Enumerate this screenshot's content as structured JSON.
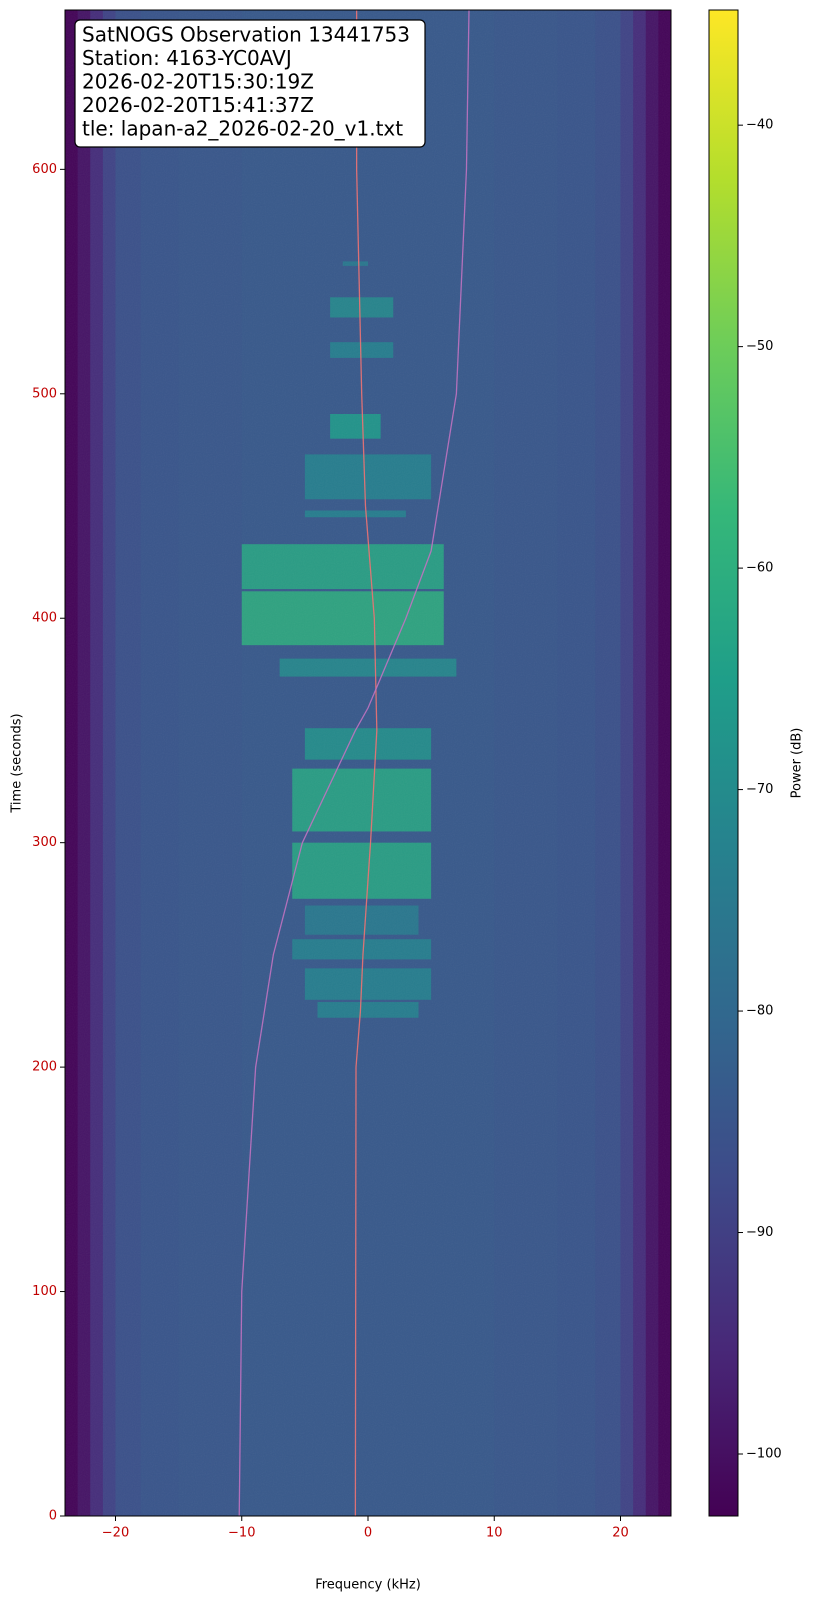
{
  "chart_data": {
    "type": "spectrogram",
    "xlabel": "Frequency (kHz)",
    "ylabel": "Time (seconds)",
    "colorbar_label": "Power (dB)",
    "colormap": "viridis",
    "annotation": [
      "SatNOGS Observation 13441753",
      "Station: 4163-YC0AVJ",
      "2026-02-20T15:30:19Z",
      "2026-02-20T15:41:37Z",
      "tle: lapan-a2_2026-02-20_v1.txt"
    ],
    "xlim": [
      -24,
      24
    ],
    "ylim": [
      0,
      671
    ],
    "clim": [
      -102.8,
      -34.8
    ],
    "xticks": [
      {
        "value": -20,
        "label": "−20"
      },
      {
        "value": -10,
        "label": "−10"
      },
      0,
      10,
      20
    ],
    "yticks": [
      0,
      100,
      200,
      300,
      400,
      500,
      600
    ],
    "cticks": [
      {
        "value": -100,
        "label": "−100"
      },
      {
        "value": -90,
        "label": "−90"
      },
      {
        "value": -80,
        "label": "−80"
      },
      {
        "value": -70,
        "label": "−70"
      },
      {
        "value": -60,
        "label": "−60"
      },
      {
        "value": -50,
        "label": "−50"
      },
      {
        "value": -40,
        "label": "−40"
      }
    ],
    "tick_label_color": "#c00000",
    "background": {
      "bins": [
        -24,
        -23,
        -22,
        -21,
        -20,
        -18,
        -15,
        -10,
        -5,
        0,
        5,
        10,
        15,
        18,
        20,
        21,
        22,
        23,
        24
      ],
      "values": [
        -102,
        -99,
        -94,
        -89,
        -86,
        -85,
        -84.5,
        -84,
        -84,
        -84,
        -84,
        -84.5,
        -85,
        -86,
        -89,
        -94,
        -99,
        -102
      ]
    },
    "bursts": [
      {
        "t": [
          222,
          229
        ],
        "f": [
          -4,
          4
        ],
        "value": -72
      },
      {
        "t": [
          230,
          244
        ],
        "f": [
          -5,
          5
        ],
        "value": -72
      },
      {
        "t": [
          248,
          257
        ],
        "f": [
          -6,
          5
        ],
        "value": -72
      },
      {
        "t": [
          259,
          272
        ],
        "f": [
          -5,
          4
        ],
        "value": -74
      },
      {
        "t": [
          275,
          300
        ],
        "f": [
          -6,
          5
        ],
        "value": -62
      },
      {
        "t": [
          305,
          333
        ],
        "f": [
          -6,
          5
        ],
        "value": -62
      },
      {
        "t": [
          337,
          351
        ],
        "f": [
          -5,
          5
        ],
        "value": -68
      },
      {
        "t": [
          374,
          382
        ],
        "f": [
          -7,
          7
        ],
        "value": -70
      },
      {
        "t": [
          388,
          412
        ],
        "f": [
          -10,
          6
        ],
        "value": -60
      },
      {
        "t": [
          413,
          433
        ],
        "f": [
          -10,
          6
        ],
        "value": -62
      },
      {
        "t": [
          445,
          448
        ],
        "f": [
          -5,
          3
        ],
        "value": -72
      },
      {
        "t": [
          453,
          473
        ],
        "f": [
          -5,
          5
        ],
        "value": -72
      },
      {
        "t": [
          480,
          491
        ],
        "f": [
          -3,
          1
        ],
        "value": -65
      },
      {
        "t": [
          516,
          523
        ],
        "f": [
          -3,
          2
        ],
        "value": -72
      },
      {
        "t": [
          534,
          543
        ],
        "f": [
          -3,
          2
        ],
        "value": -70
      },
      {
        "t": [
          557,
          559
        ],
        "f": [
          -2,
          0
        ],
        "value": -74
      }
    ],
    "curves": [
      {
        "color": "#f07070",
        "x": [
          -1.0,
          -0.95,
          -0.6,
          -0.4,
          0.2,
          0.7,
          0.5,
          -0.2,
          -0.5,
          -0.7,
          -0.9,
          -0.9
        ],
        "y": [
          0,
          200,
          225,
          250,
          300,
          350,
          400,
          450,
          500,
          550,
          600,
          671
        ]
      },
      {
        "color": "#c070c0",
        "x": [
          -10.2,
          -10.0,
          -8.9,
          -7.5,
          -5.2,
          -1.0,
          0.0,
          3.0,
          5.0,
          7.0,
          7.8,
          8.0
        ],
        "y": [
          0,
          100,
          200,
          250,
          300,
          350,
          360,
          400,
          430,
          500,
          600,
          671
        ]
      }
    ]
  }
}
